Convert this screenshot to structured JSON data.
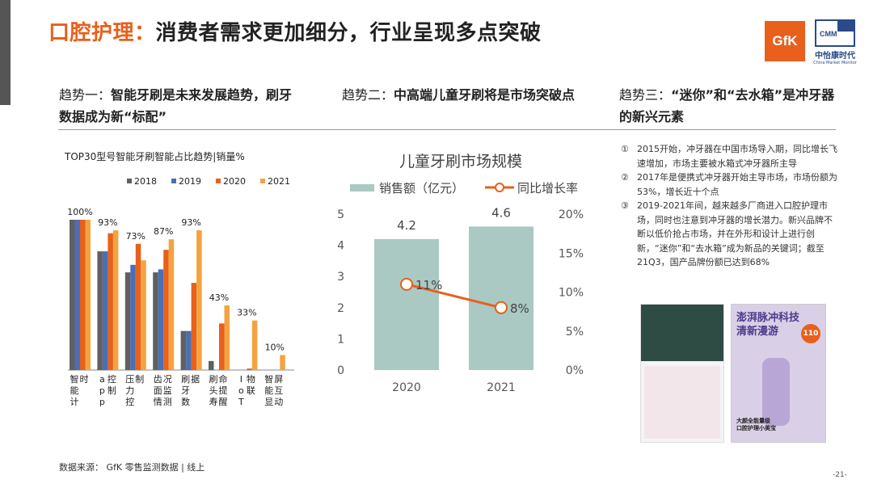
{
  "header": {
    "title_highlight": "口腔护理：",
    "title_rest": "消费者需求更加细分，行业呈现多点突破",
    "logo_gfk": "GfK",
    "logo_cmm": "CMM",
    "logo_cmm_cn": "中怡康时代",
    "logo_cmm_en": "China Market Monitor"
  },
  "trends": [
    {
      "prefix": "趋势一：",
      "bold": "智能牙刷是未来发展趋势，刷牙数据成为新“标配”"
    },
    {
      "prefix": "趋势二：",
      "bold": "中高端儿童牙刷将是市场突破点"
    },
    {
      "prefix": "趋势三：",
      "bold": "“迷你”和“去水箱”是冲牙器的新兴元素"
    }
  ],
  "notes": [
    {
      "num": "①",
      "text": "2015开始，冲牙器在中国市场导入期，同比增长飞速增加，市场主要被水箱式冲牙器所主导"
    },
    {
      "num": "②",
      "text": "2017年是便携式冲牙器开始主导市场，市场份额为53%，增长近十个点"
    },
    {
      "num": "③",
      "text": "2019-2021年间，越来越多厂商进入口腔护理市场，同时也注意到冲牙器的增长潜力。新兴品牌不断以低价抢占市场，并在外形和设计上进行创新，“迷你”和“去水箱”成为新品的关键词；截至21Q3，国产品牌份额已达到68%"
    }
  ],
  "product_image": {
    "headline_1": "澎湃脉冲科技",
    "headline_2": "清新漫游",
    "badge": "110",
    "footer_1": "大颜全能量级",
    "footer_2": "口腔护理小美宝"
  },
  "footer": {
    "source": "数据来源： GfK 零售监测数据 | 线上",
    "page": "-21-"
  },
  "colors": {
    "accent": "#e8601c",
    "s2018": "#606060",
    "s2019": "#4a6fb5",
    "s2020": "#e8601c",
    "s2021": "#f4a340",
    "bar2": "#a9c9c2",
    "line2": "#e8601c"
  },
  "chart_data": [
    {
      "type": "bar",
      "title": "TOP30型号智能牙刷智能占比趋势|销量%",
      "categories": [
        "智能计时",
        "app控制",
        "压力控制",
        "齿面情况监测",
        "刷牙数据",
        "刷头寿命提醒",
        "IoT物联",
        "智能显屏互动"
      ],
      "series": [
        {
          "name": "2018",
          "values": [
            100,
            79,
            65,
            65,
            26,
            6,
            0,
            0
          ]
        },
        {
          "name": "2019",
          "values": [
            100,
            79,
            70,
            67,
            26,
            0,
            0,
            0
          ]
        },
        {
          "name": "2020",
          "values": [
            100,
            91,
            84,
            80,
            58,
            31,
            1,
            0
          ]
        },
        {
          "name": "2021",
          "values": [
            100,
            93,
            73,
            87,
            93,
            43,
            33,
            10
          ]
        }
      ],
      "data_labels": [
        "100%",
        "93%",
        "73%",
        "87%",
        "93%",
        "43%",
        "33%",
        "10%"
      ],
      "ylim": [
        0,
        100
      ],
      "legend": "top"
    },
    {
      "type": "bar",
      "title": "儿童牙刷市场规模",
      "categories": [
        "2020",
        "2021"
      ],
      "series": [
        {
          "name": "销售额（亿元）",
          "type": "bar",
          "values": [
            4.2,
            4.6
          ],
          "axis": "left"
        },
        {
          "name": "同比增长率",
          "type": "line",
          "values": [
            11,
            8
          ],
          "axis": "right"
        }
      ],
      "bar_labels": [
        "4.2",
        "4.6"
      ],
      "line_labels": [
        "11%",
        "8%"
      ],
      "y_left_ticks": [
        "0",
        "1",
        "2",
        "3",
        "4",
        "5"
      ],
      "y_right_ticks": [
        "0%",
        "5%",
        "10%",
        "15%",
        "20%"
      ],
      "ylim_left": [
        0,
        5
      ],
      "ylim_right": [
        0,
        20
      ],
      "legend": "top"
    }
  ]
}
